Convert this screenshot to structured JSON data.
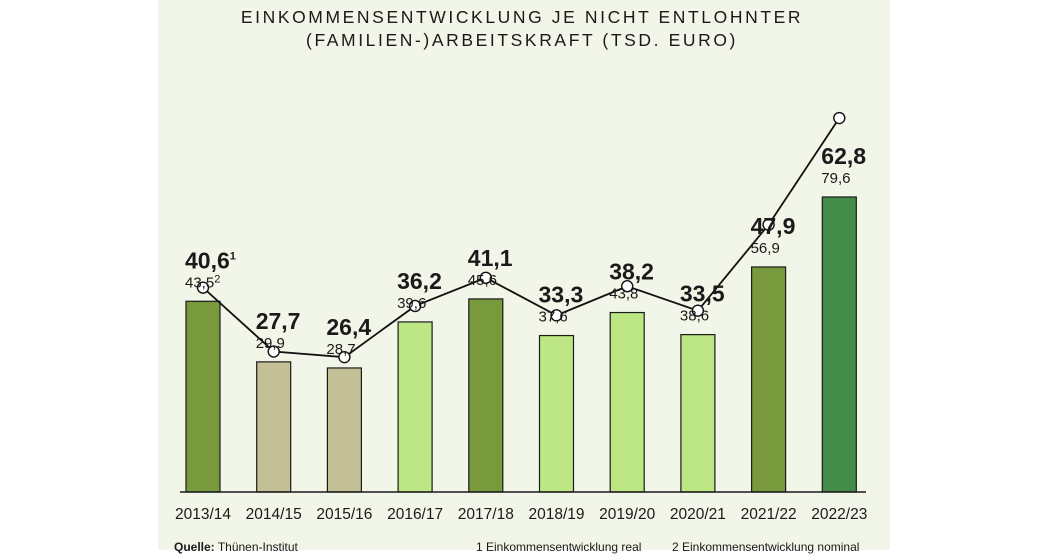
{
  "title_lines": [
    "EINKOMMENSENTWICKLUNG JE NICHT ENTLOHNTER",
    "(FAMILIEN-)ARBEITSKRAFT (TSD. EURO)"
  ],
  "colors": {
    "panel_bg": "#f1f6e8",
    "dark_green": "#799a3c",
    "tan": "#c4c096",
    "light_green": "#bde784",
    "deep_green": "#438d48",
    "line": "#111111",
    "marker_fill": "#ffffff"
  },
  "chart_data": {
    "type": "bar",
    "categories": [
      "2013/14",
      "2014/15",
      "2015/16",
      "2016/17",
      "2017/18",
      "2018/19",
      "2019/20",
      "2020/21",
      "2021/22",
      "2022/23"
    ],
    "series": [
      {
        "name": "Einkommensentwicklung real",
        "kind": "bar",
        "values": [
          40.6,
          27.7,
          26.4,
          36.2,
          41.1,
          33.3,
          38.2,
          33.5,
          47.9,
          62.8
        ],
        "labels": [
          "40,6",
          "27,7",
          "26,4",
          "36,2",
          "41,1",
          "33,3",
          "38,2",
          "33,5",
          "47,9",
          "62,8"
        ],
        "bar_colors": [
          "dark_green",
          "tan",
          "tan",
          "light_green",
          "dark_green",
          "light_green",
          "light_green",
          "light_green",
          "dark_green",
          "deep_green"
        ]
      },
      {
        "name": "Einkommensentwicklung nominal",
        "kind": "line",
        "values": [
          43.5,
          29.9,
          28.7,
          39.6,
          45.6,
          37.6,
          43.8,
          38.6,
          56.9,
          79.6
        ],
        "labels": [
          "43,5",
          "29,9",
          "28,7",
          "39,6",
          "45,6",
          "37,6",
          "43,8",
          "38,6",
          "56,9",
          "79,6"
        ]
      }
    ],
    "footnote_marks": {
      "real": "1",
      "nominal": "2"
    },
    "ylim": [
      0,
      84
    ],
    "grid": false
  },
  "footer": {
    "source_label": "Quelle:",
    "source_text": "Thünen-Institut",
    "note1": "1 Einkommensentwicklung real",
    "note2": "2 Einkommensentwicklung nominal"
  }
}
